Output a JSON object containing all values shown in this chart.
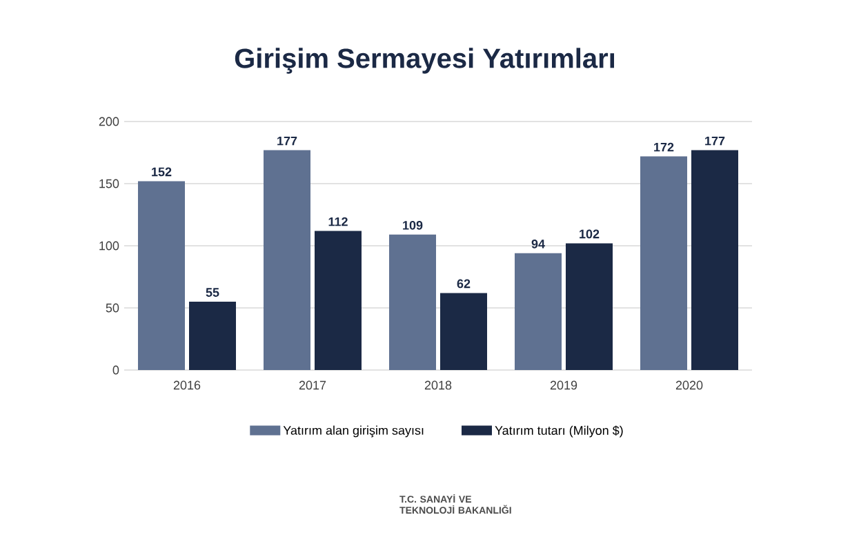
{
  "chart_data": {
    "type": "bar",
    "title": "Girişim Sermayesi Yatırımları",
    "categories": [
      "2016",
      "2017",
      "2018",
      "2019",
      "2020"
    ],
    "series": [
      {
        "name": "Yatırım alan girişim sayısı",
        "color": "#5f7191",
        "values": [
          152,
          177,
          109,
          94,
          172
        ]
      },
      {
        "name": "Yatırım tutarı (Milyon $)",
        "color": "#1b2945",
        "values": [
          55,
          112,
          62,
          102,
          177
        ]
      }
    ],
    "ylim": [
      0,
      200
    ],
    "yticks": [
      0,
      50,
      100,
      150,
      200
    ],
    "grid": "y",
    "legend": "bottom",
    "data_labels": true,
    "annotations": [
      "T.C. SANAYİ VE TEKNOLOJİ BAKANLIĞI"
    ]
  }
}
